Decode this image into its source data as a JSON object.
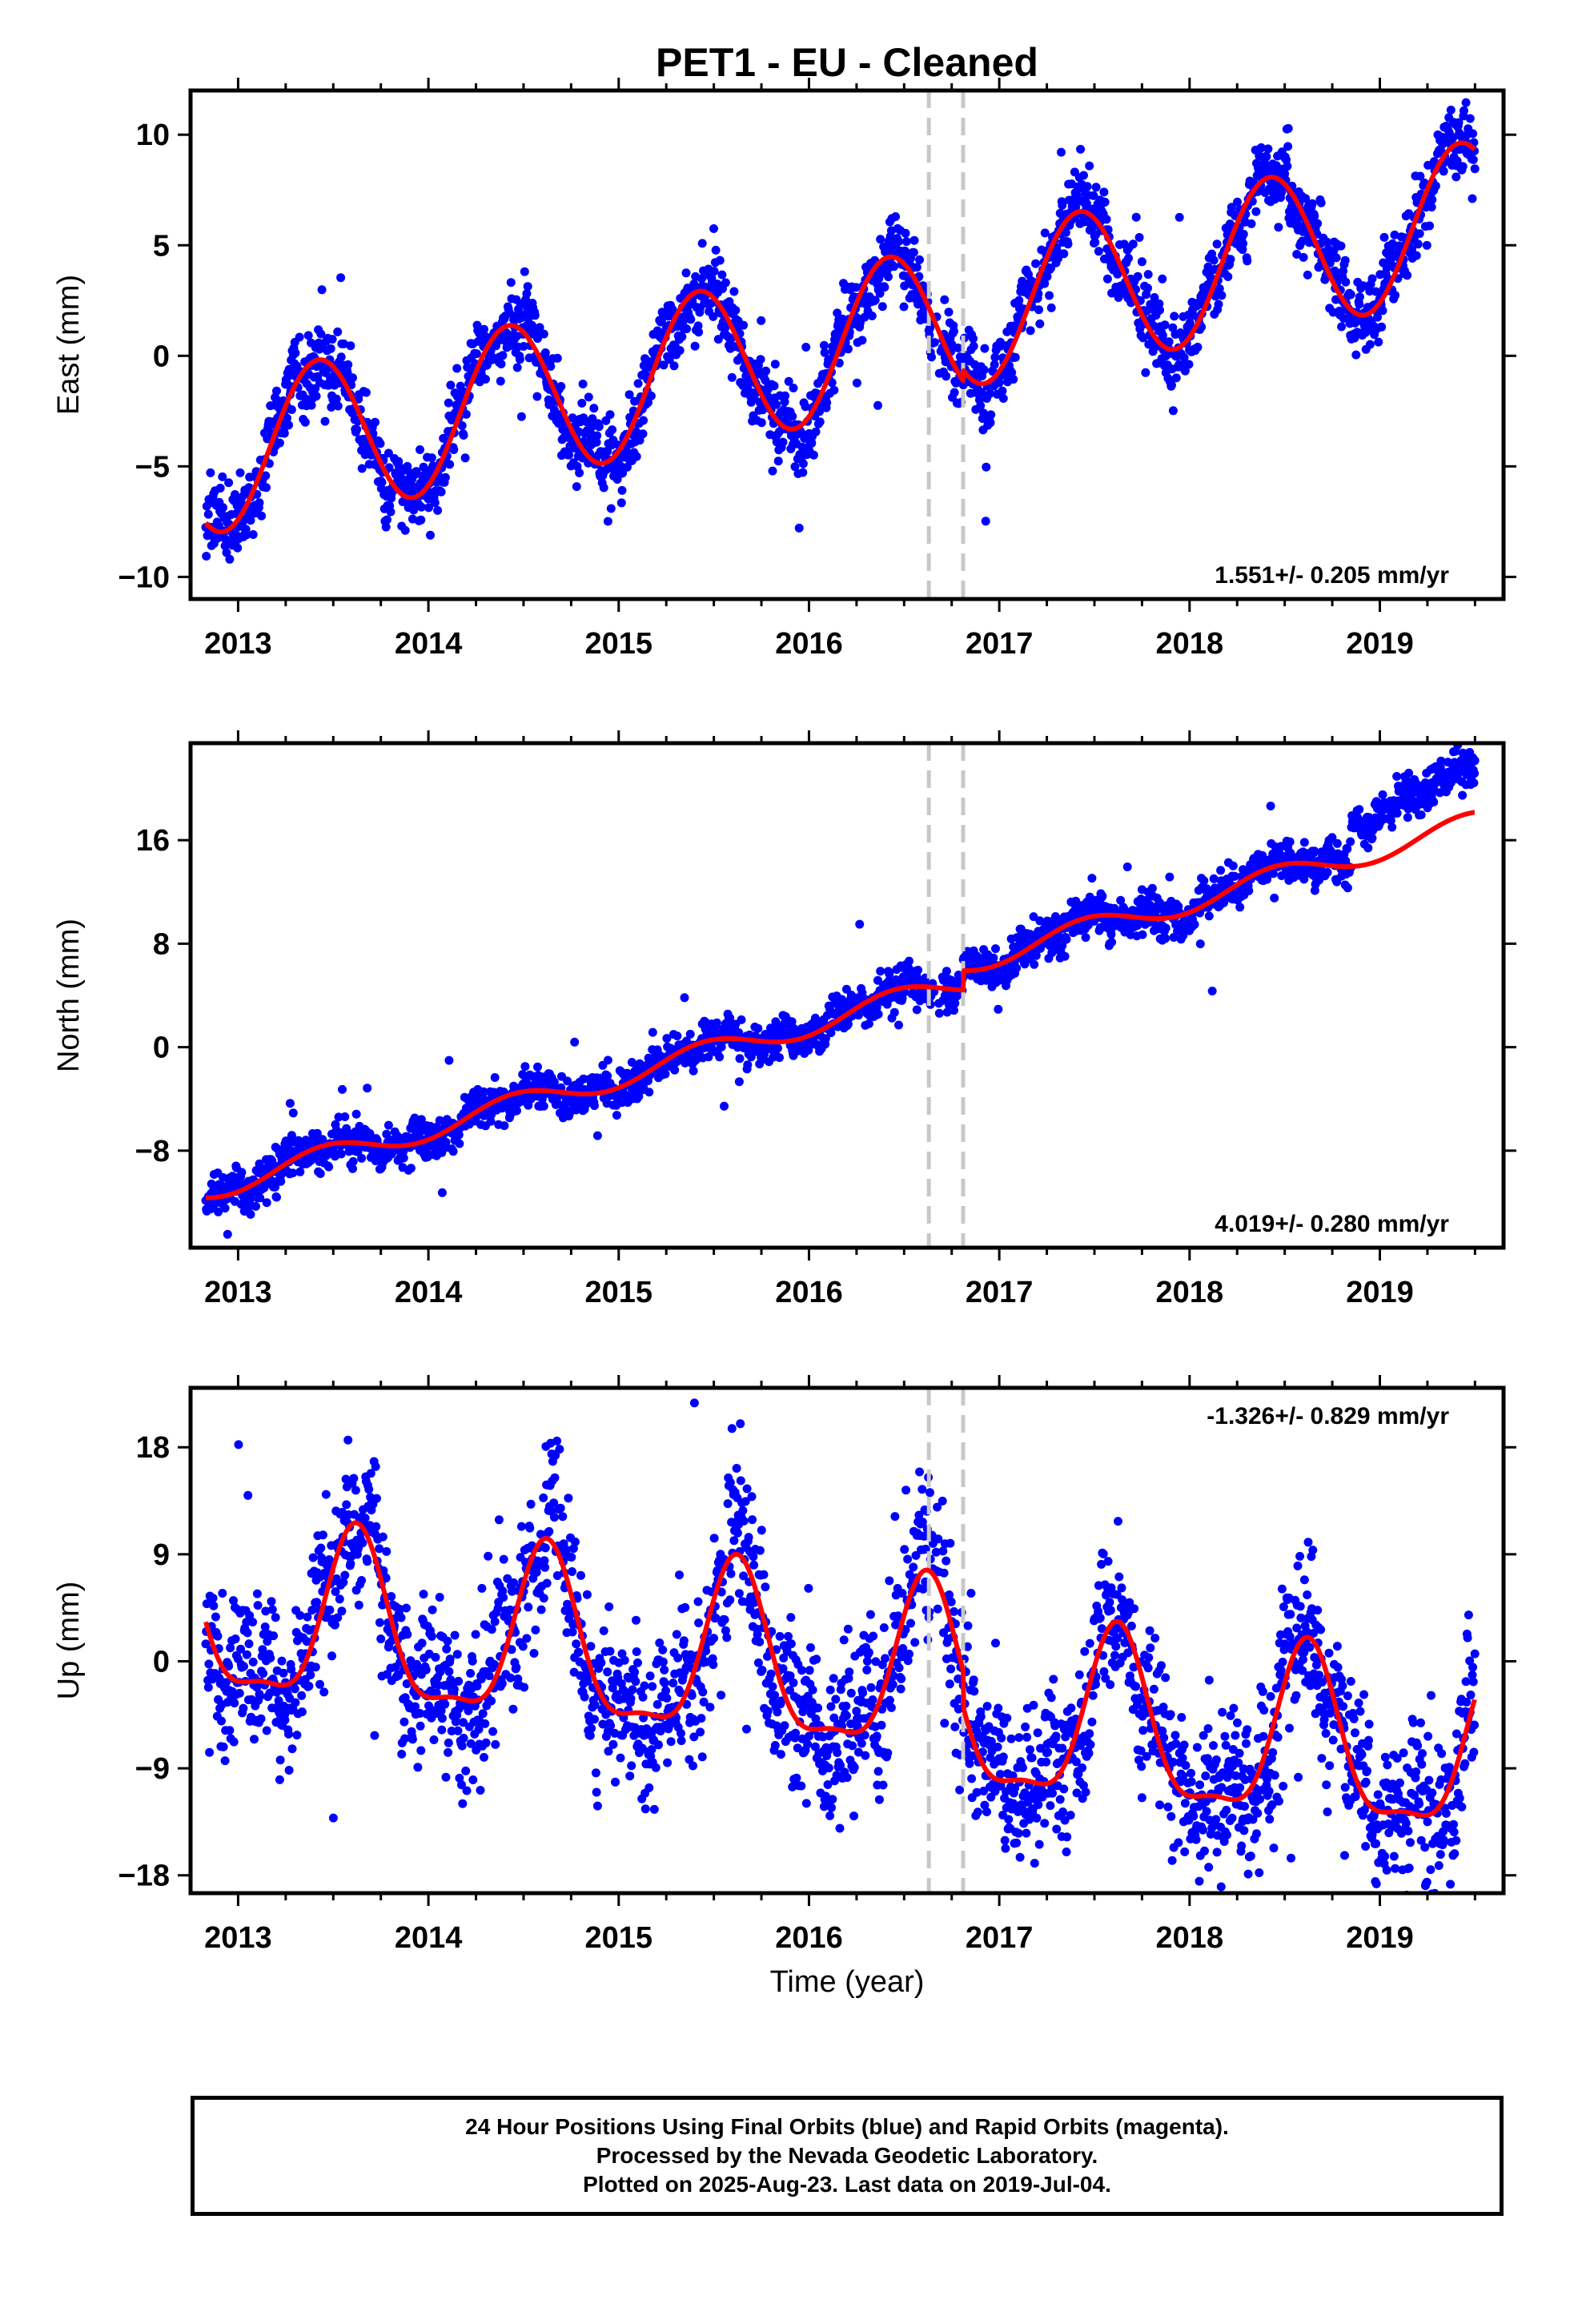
{
  "title": "PET1  - EU - Cleaned",
  "x_axis_label": "Time (year)",
  "footer": {
    "line1": "24 Hour Positions Using Final Orbits (blue) and Rapid Orbits (magenta).",
    "line2": "Processed by the Nevada Geodetic Laboratory.",
    "line3": "Plotted on 2025-Aug-23. Last data on 2019-Jul-04."
  },
  "colors": {
    "data_points": "#0000ff",
    "model_fit": "#ff0000",
    "event_lines": "#c8c8c8"
  },
  "chart_data": [
    {
      "type": "scatter",
      "component": "east",
      "ylabel": "East (mm)",
      "rate_text": "1.551+/- 0.205 mm/yr",
      "xlim": [
        2012.75,
        2019.65
      ],
      "ylim": [
        -11,
        12
      ],
      "yticks": [
        -10,
        -5,
        0,
        5,
        10
      ],
      "xticks": [
        2013,
        2014,
        2015,
        2016,
        2017,
        2018,
        2019
      ],
      "grid": false,
      "event_lines_x": [
        2016.63,
        2016.81
      ],
      "model": {
        "offset": -4.6,
        "rate": 1.551,
        "annual_amp": 3.5,
        "peak_time": 0.42,
        "step_at": 2016.81,
        "step": 0.5,
        "start": 2012.83,
        "end": 2019.5
      },
      "series": [
        {
          "name": "24 Hour Positions (Final Orbits)",
          "style": "points",
          "scatter_mm": 1.1
        },
        {
          "style": "line"
        }
      ]
    },
    {
      "type": "scatter",
      "component": "north",
      "ylabel": "North (mm)",
      "rate_text": "4.019+/- 0.280 mm/yr",
      "xlim": [
        2012.75,
        2019.65
      ],
      "ylim": [
        -15.5,
        23.5
      ],
      "yticks": [
        -8,
        0,
        8,
        16
      ],
      "xticks": [
        2013,
        2014,
        2015,
        2016,
        2017,
        2018,
        2019
      ],
      "grid": false,
      "event_lines_x": [
        2016.63,
        2016.81
      ],
      "model": {
        "offset": -11.0,
        "rate": 4.019,
        "annual_amp": 0.9,
        "peak_time": 0.45,
        "step_at": 2016.81,
        "step": 1.5,
        "start": 2012.83,
        "end": 2019.5
      },
      "data_extra_offset": {
        "after": 2018.85,
        "value": 3.5
      },
      "series": [
        {
          "name": "24 Hour Positions (Final Orbits)",
          "style": "points",
          "scatter_mm": 1.0
        },
        {
          "style": "line"
        }
      ]
    },
    {
      "type": "scatter",
      "component": "up",
      "ylabel": "Up (mm)",
      "rate_text": "-1.326+/- 0.829 mm/yr",
      "xlim": [
        2012.75,
        2019.65
      ],
      "ylim": [
        -19.5,
        23
      ],
      "yticks": [
        -18,
        -9,
        0,
        9,
        18
      ],
      "xticks": [
        2013,
        2014,
        2015,
        2016,
        2017,
        2018,
        2019
      ],
      "grid": false,
      "event_lines_x": [
        2016.63,
        2016.81
      ],
      "model": {
        "offset": 3.5,
        "rate": -1.326,
        "annual_amp": 7.0,
        "peak_time": 0.62,
        "semi_amp": 2.2,
        "step_at": 2016.81,
        "step": -3.0,
        "start": 2012.83,
        "end": 2019.5
      },
      "series": [
        {
          "name": "24 Hour Positions (Final Orbits)",
          "style": "points",
          "scatter_mm": 4.2
        },
        {
          "style": "line"
        }
      ]
    }
  ]
}
